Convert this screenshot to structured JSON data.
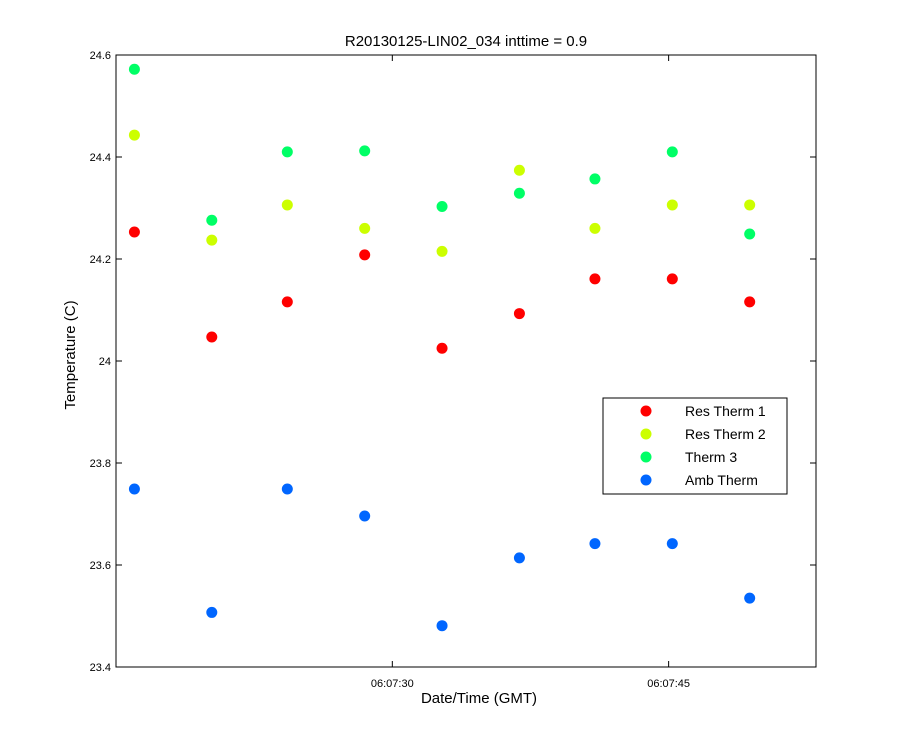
{
  "chart_data": {
    "type": "scatter",
    "title": "R20130125-LIN02_034 inttime = 0.9",
    "xlabel": "Date/Time (GMT)",
    "ylabel": "Temperature (C)",
    "xlim": [
      15,
      53
    ],
    "ylim": [
      23.4,
      24.6
    ],
    "x_is_seconds_after": "06:07:00",
    "xticks": [
      {
        "value": 30,
        "label": "06:07:30"
      },
      {
        "value": 45,
        "label": "06:07:45"
      }
    ],
    "yticks": [
      {
        "value": 23.4,
        "label": "23.4"
      },
      {
        "value": 23.6,
        "label": "23.6"
      },
      {
        "value": 23.8,
        "label": "23.8"
      },
      {
        "value": 24.0,
        "label": "24"
      },
      {
        "value": 24.2,
        "label": "24.2"
      },
      {
        "value": 24.4,
        "label": "24.4"
      },
      {
        "value": 24.6,
        "label": "24.6"
      }
    ],
    "grid": false,
    "legend_position": "right",
    "x": [
      16.0,
      20.2,
      24.3,
      28.5,
      32.7,
      36.9,
      41.0,
      45.2,
      49.4
    ],
    "series": [
      {
        "name": "Res Therm 1",
        "color": "#ff0000",
        "values": [
          24.253,
          24.047,
          24.116,
          24.208,
          24.025,
          24.093,
          24.161,
          24.161,
          24.116
        ]
      },
      {
        "name": "Res Therm 2",
        "color": "#ccff00",
        "values": [
          24.443,
          24.237,
          24.306,
          24.26,
          24.215,
          24.374,
          24.26,
          24.306,
          24.306
        ]
      },
      {
        "name": "Therm 3",
        "color": "#00ff66",
        "values": [
          24.572,
          24.276,
          24.41,
          24.412,
          24.303,
          24.329,
          24.357,
          24.41,
          24.249
        ]
      },
      {
        "name": "Amb Therm",
        "color": "#0066ff",
        "values": [
          23.749,
          23.507,
          23.749,
          23.696,
          23.481,
          23.614,
          23.642,
          23.642,
          23.535
        ]
      }
    ]
  }
}
